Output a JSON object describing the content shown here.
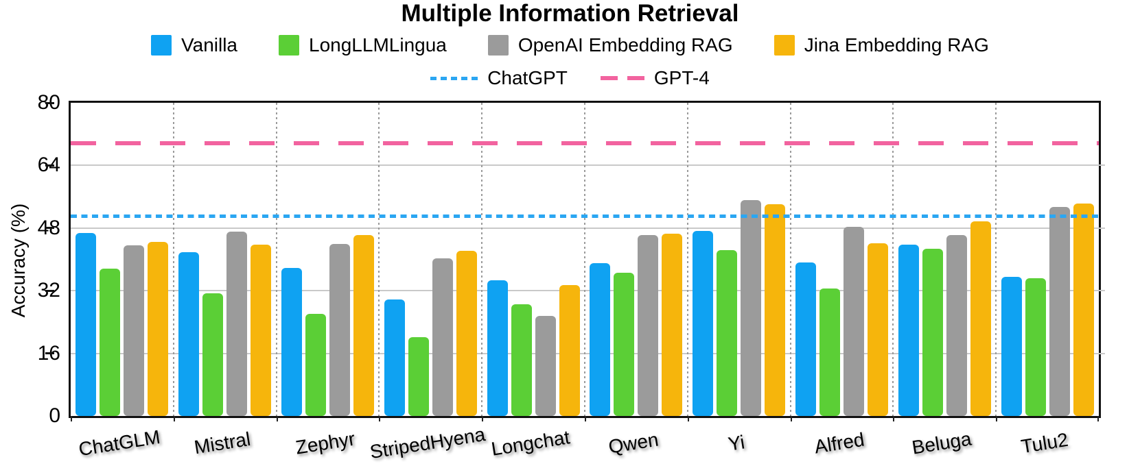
{
  "chart_data": {
    "type": "bar",
    "title": "Multiple Information Retrieval",
    "xlabel": "",
    "ylabel": "Accuracy (%)",
    "ylim": [
      0,
      80
    ],
    "yticks": [
      0,
      16,
      32,
      48,
      64,
      80
    ],
    "grid": "horizontal solid gray lines at yticks; vertical dotted gray separators between model groups",
    "legend_position": "top",
    "categories": [
      "ChatGLM",
      "Mistral",
      "Zephyr",
      "StripedHyena",
      "Longchat",
      "Qwen",
      "Yi",
      "Alfred",
      "Beluga",
      "Tulu2"
    ],
    "series": [
      {
        "name": "Vanilla",
        "color": "#0FA2F2",
        "values": [
          46.7,
          41.9,
          37.9,
          29.7,
          34.6,
          39.0,
          47.3,
          39.2,
          43.7,
          35.5
        ]
      },
      {
        "name": "LongLLMLingua",
        "color": "#5BCF36",
        "values": [
          37.6,
          31.4,
          26.1,
          20.1,
          28.5,
          36.6,
          42.3,
          32.5,
          42.7,
          35.2
        ]
      },
      {
        "name": "OpenAI Embedding RAG",
        "color": "#9B9B9B",
        "values": [
          43.6,
          47.1,
          43.9,
          40.2,
          25.6,
          46.3,
          55.1,
          48.4,
          46.2,
          53.4
        ]
      },
      {
        "name": "Jina Embedding  RAG",
        "color": "#F6B50C",
        "values": [
          44.5,
          43.8,
          46.3,
          42.2,
          33.4,
          46.6,
          54.1,
          44.2,
          49.8,
          54.2
        ]
      }
    ],
    "hlines": [
      {
        "label": "ChatGPT",
        "value": 51.0,
        "color": "#2BA6F2",
        "style": "dotted"
      },
      {
        "label": "GPT-4",
        "value": 69.6,
        "color": "#F2639F",
        "style": "dashed"
      }
    ]
  }
}
